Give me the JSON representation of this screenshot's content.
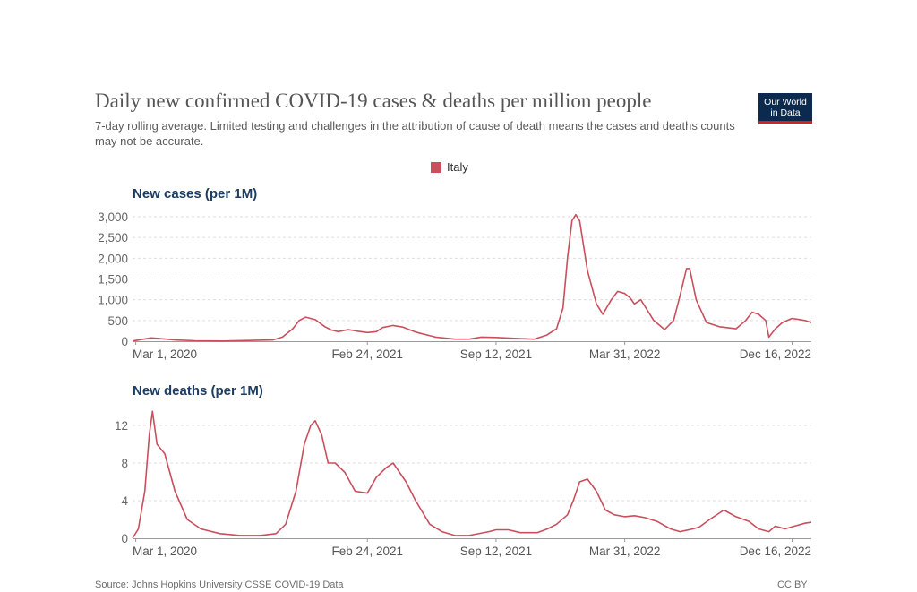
{
  "title": "Daily new confirmed COVID-19 cases & deaths per million people",
  "subtitle": "7-day rolling average. Limited testing and challenges in the attribution of cause of death means the cases and deaths counts may not be accurate.",
  "logo": {
    "line1": "Our World",
    "line2": "in Data"
  },
  "colors": {
    "series": "#c94f5d",
    "logo_bg": "#0c2a4d",
    "logo_bar": "#ce261e",
    "panel_title": "#1d3d63"
  },
  "footer": {
    "source": "Source: Johns Hopkins University CSSE COVID-19 Data",
    "license": "CC BY"
  },
  "chart_data": [
    {
      "type": "line",
      "title": "New cases (per 1M)",
      "x_type": "date",
      "xlim": [
        "2020-02-25",
        "2023-01-15"
      ],
      "ylim": [
        0,
        3000
      ],
      "yticks": [
        0,
        500,
        1000,
        1500,
        2000,
        2500,
        3000
      ],
      "ytick_labels": [
        "0",
        "500",
        "1,000",
        "1,500",
        "2,000",
        "2,500",
        "3,000"
      ],
      "xticks": [
        "2020-03-01",
        "2021-02-24",
        "2021-09-12",
        "2022-03-31",
        "2022-12-16"
      ],
      "xtick_labels": [
        "Mar 1, 2020",
        "Feb 24, 2021",
        "Sep 12, 2021",
        "Mar 31, 2022",
        "Dec 16, 2022"
      ],
      "grid": true,
      "legend": "top-center",
      "series": [
        {
          "name": "Italy",
          "x": [
            "2020-02-25",
            "2020-03-10",
            "2020-03-25",
            "2020-04-10",
            "2020-05-01",
            "2020-06-01",
            "2020-07-15",
            "2020-08-31",
            "2020-09-30",
            "2020-10-15",
            "2020-10-31",
            "2020-11-10",
            "2020-11-20",
            "2020-12-05",
            "2020-12-20",
            "2020-12-30",
            "2021-01-10",
            "2021-01-25",
            "2021-02-10",
            "2021-02-24",
            "2021-03-10",
            "2021-03-20",
            "2021-04-05",
            "2021-04-20",
            "2021-05-10",
            "2021-06-10",
            "2021-07-10",
            "2021-08-01",
            "2021-08-20",
            "2021-09-12",
            "2021-10-10",
            "2021-11-10",
            "2021-11-30",
            "2021-12-15",
            "2021-12-25",
            "2022-01-01",
            "2022-01-08",
            "2022-01-14",
            "2022-01-20",
            "2022-02-01",
            "2022-02-15",
            "2022-02-25",
            "2022-03-10",
            "2022-03-20",
            "2022-03-31",
            "2022-04-08",
            "2022-04-15",
            "2022-04-25",
            "2022-05-15",
            "2022-06-01",
            "2022-06-15",
            "2022-06-25",
            "2022-07-05",
            "2022-07-10",
            "2022-07-20",
            "2022-08-05",
            "2022-08-25",
            "2022-09-20",
            "2022-10-05",
            "2022-10-15",
            "2022-10-25",
            "2022-11-05",
            "2022-11-10",
            "2022-11-20",
            "2022-12-01",
            "2022-12-16",
            "2023-01-05",
            "2023-01-15"
          ],
          "y": [
            5,
            40,
            80,
            60,
            30,
            10,
            5,
            20,
            30,
            100,
            300,
            500,
            580,
            520,
            350,
            270,
            230,
            280,
            240,
            210,
            230,
            330,
            380,
            340,
            220,
            100,
            50,
            50,
            100,
            90,
            70,
            50,
            150,
            300,
            800,
            2000,
            2900,
            3050,
            2900,
            1700,
            900,
            650,
            1000,
            1200,
            1150,
            1050,
            900,
            1000,
            500,
            280,
            500,
            1100,
            1750,
            1750,
            1000,
            450,
            350,
            300,
            500,
            700,
            650,
            500,
            100,
            300,
            450,
            550,
            500,
            450
          ]
        }
      ]
    },
    {
      "type": "line",
      "title": "New deaths (per 1M)",
      "x_type": "date",
      "xlim": [
        "2020-02-25",
        "2023-01-15"
      ],
      "ylim": [
        0,
        14
      ],
      "yticks": [
        0,
        4,
        8,
        12
      ],
      "ytick_labels": [
        "0",
        "4",
        "8",
        "12"
      ],
      "xticks": [
        "2020-03-01",
        "2021-02-24",
        "2021-09-12",
        "2022-03-31",
        "2022-12-16"
      ],
      "xtick_labels": [
        "Mar 1, 2020",
        "Feb 24, 2021",
        "Sep 12, 2021",
        "Mar 31, 2022",
        "Dec 16, 2022"
      ],
      "grid": true,
      "series": [
        {
          "name": "Italy",
          "x": [
            "2020-02-25",
            "2020-03-05",
            "2020-03-15",
            "2020-03-22",
            "2020-03-27",
            "2020-04-03",
            "2020-04-15",
            "2020-05-01",
            "2020-05-20",
            "2020-06-10",
            "2020-07-10",
            "2020-08-10",
            "2020-09-10",
            "2020-10-05",
            "2020-10-20",
            "2020-11-05",
            "2020-11-18",
            "2020-11-28",
            "2020-12-05",
            "2020-12-15",
            "2020-12-25",
            "2021-01-05",
            "2021-01-20",
            "2021-02-05",
            "2021-02-24",
            "2021-03-10",
            "2021-03-25",
            "2021-04-05",
            "2021-04-15",
            "2021-04-25",
            "2021-05-10",
            "2021-06-01",
            "2021-06-20",
            "2021-07-10",
            "2021-08-01",
            "2021-09-01",
            "2021-09-12",
            "2021-10-01",
            "2021-10-20",
            "2021-11-15",
            "2021-12-01",
            "2021-12-15",
            "2022-01-01",
            "2022-01-10",
            "2022-01-20",
            "2022-02-01",
            "2022-02-15",
            "2022-03-01",
            "2022-03-15",
            "2022-03-31",
            "2022-04-15",
            "2022-05-01",
            "2022-05-20",
            "2022-06-10",
            "2022-06-25",
            "2022-07-15",
            "2022-07-25",
            "2022-08-10",
            "2022-09-01",
            "2022-09-20",
            "2022-10-10",
            "2022-10-25",
            "2022-11-10",
            "2022-11-20",
            "2022-12-05",
            "2022-12-20",
            "2023-01-05",
            "2023-01-15"
          ],
          "y": [
            0,
            1,
            5,
            11,
            13.5,
            10,
            9,
            5,
            2,
            1,
            0.5,
            0.3,
            0.3,
            0.5,
            1.5,
            5,
            10,
            12,
            12.5,
            11,
            8,
            8,
            7,
            5,
            4.8,
            6.5,
            7.5,
            8,
            7,
            6,
            4,
            1.5,
            0.7,
            0.3,
            0.3,
            0.7,
            0.9,
            0.9,
            0.6,
            0.6,
            1,
            1.5,
            2.5,
            4,
            6,
            6.3,
            5,
            3,
            2.5,
            2.3,
            2.4,
            2.2,
            1.8,
            1,
            0.7,
            1,
            1.2,
            2,
            3,
            2.3,
            1.8,
            1,
            0.7,
            1.3,
            1,
            1.3,
            1.6,
            1.7
          ]
        }
      ]
    }
  ]
}
